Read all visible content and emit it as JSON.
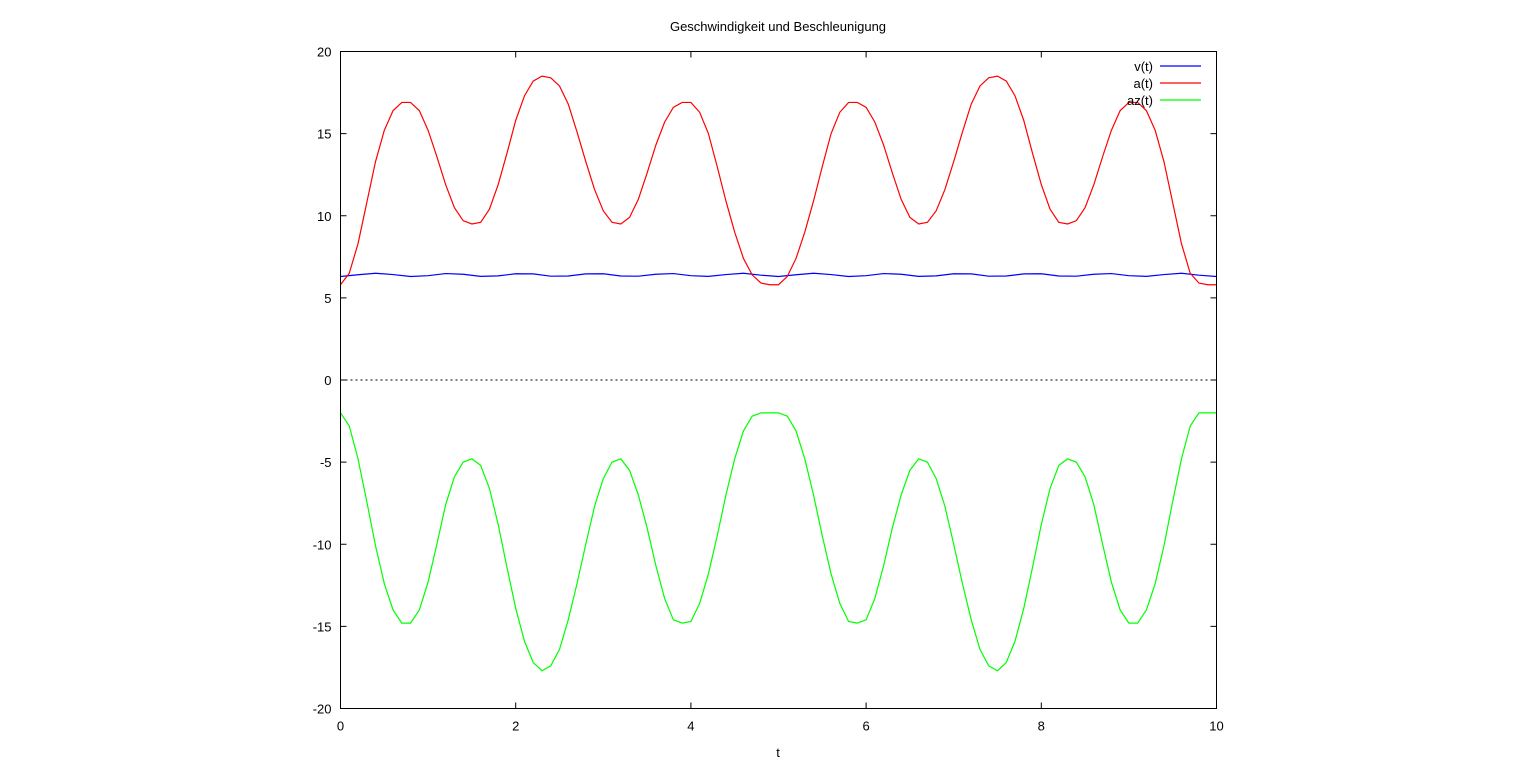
{
  "chart_data": {
    "type": "line",
    "title": "Geschwindigkeit und Beschleunigung",
    "xlabel": "t",
    "ylabel": "",
    "xlim": [
      0,
      10
    ],
    "ylim": [
      -20,
      20
    ],
    "x_ticks": [
      "0",
      "2",
      "4",
      "6",
      "8",
      "10"
    ],
    "y_ticks": [
      "-20",
      "-15",
      "-10",
      "-5",
      "0",
      "5",
      "10",
      "15",
      "20"
    ],
    "zero_line": true,
    "grid": false,
    "legend_position": "top-right",
    "series": [
      {
        "name": "v(t)",
        "color": "#0000ff",
        "x": [
          0.0,
          0.2,
          0.4,
          0.6,
          0.8,
          1.0,
          1.2,
          1.4,
          1.6,
          1.8,
          2.0,
          2.2,
          2.4,
          2.6,
          2.8,
          3.0,
          3.2,
          3.4,
          3.6,
          3.8,
          4.0,
          4.2,
          4.4,
          4.6,
          4.8,
          5.0,
          5.2,
          5.4,
          5.6,
          5.8,
          6.0,
          6.2,
          6.4,
          6.6,
          6.8,
          7.0,
          7.2,
          7.4,
          7.6,
          7.8,
          8.0,
          8.2,
          8.4,
          8.6,
          8.8,
          9.0,
          9.2,
          9.4,
          9.6,
          9.8,
          10.0
        ],
        "y": [
          6.3,
          6.41,
          6.5,
          6.42,
          6.3,
          6.35,
          6.48,
          6.44,
          6.31,
          6.34,
          6.47,
          6.46,
          6.32,
          6.33,
          6.46,
          6.47,
          6.33,
          6.32,
          6.44,
          6.48,
          6.35,
          6.31,
          6.42,
          6.5,
          6.38,
          6.3,
          6.41,
          6.5,
          6.42,
          6.3,
          6.35,
          6.48,
          6.44,
          6.31,
          6.34,
          6.47,
          6.46,
          6.32,
          6.33,
          6.46,
          6.47,
          6.33,
          6.32,
          6.44,
          6.48,
          6.35,
          6.31,
          6.42,
          6.5,
          6.38,
          6.3
        ]
      },
      {
        "name": "a(t)",
        "color": "#ff0000",
        "x": [
          0.0,
          0.1,
          0.2,
          0.3,
          0.4,
          0.5,
          0.6,
          0.7,
          0.8,
          0.9,
          1.0,
          1.1,
          1.2,
          1.3,
          1.4,
          1.5,
          1.6,
          1.7,
          1.8,
          1.9,
          2.0,
          2.1,
          2.2,
          2.3,
          2.4,
          2.5,
          2.6,
          2.7,
          2.8,
          2.9,
          3.0,
          3.1,
          3.2,
          3.3,
          3.4,
          3.5,
          3.6,
          3.7,
          3.8,
          3.9,
          4.0,
          4.1,
          4.2,
          4.3,
          4.4,
          4.5,
          4.6,
          4.7,
          4.8,
          4.9,
          5.0,
          5.1,
          5.2,
          5.3,
          5.4,
          5.5,
          5.6,
          5.7,
          5.8,
          5.9,
          6.0,
          6.1,
          6.2,
          6.3,
          6.4,
          6.5,
          6.6,
          6.7,
          6.8,
          6.9,
          7.0,
          7.1,
          7.2,
          7.3,
          7.4,
          7.5,
          7.6,
          7.7,
          7.8,
          7.9,
          8.0,
          8.1,
          8.2,
          8.3,
          8.4,
          8.5,
          8.6,
          8.7,
          8.8,
          8.9,
          9.0,
          9.1,
          9.2,
          9.3,
          9.4,
          9.5,
          9.6,
          9.7,
          9.8,
          9.9,
          10.0
        ],
        "y": [
          5.8,
          6.5,
          8.3,
          10.8,
          13.3,
          15.2,
          16.4,
          16.9,
          16.9,
          16.4,
          15.2,
          13.6,
          11.9,
          10.5,
          9.7,
          9.5,
          9.6,
          10.4,
          11.9,
          13.8,
          15.8,
          17.3,
          18.2,
          18.5,
          18.4,
          17.9,
          16.8,
          15.1,
          13.3,
          11.6,
          10.3,
          9.6,
          9.5,
          9.9,
          11.0,
          12.6,
          14.3,
          15.7,
          16.6,
          16.9,
          16.9,
          16.3,
          15.0,
          13.0,
          10.9,
          9.0,
          7.4,
          6.4,
          5.9,
          5.8,
          5.8,
          6.3,
          7.4,
          9.0,
          10.9,
          13.0,
          15.0,
          16.3,
          16.9,
          16.9,
          16.6,
          15.7,
          14.3,
          12.6,
          11.0,
          9.9,
          9.5,
          9.6,
          10.3,
          11.6,
          13.3,
          15.1,
          16.8,
          17.9,
          18.4,
          18.5,
          18.2,
          17.3,
          15.8,
          13.8,
          11.9,
          10.4,
          9.6,
          9.5,
          9.7,
          10.5,
          11.9,
          13.6,
          15.2,
          16.4,
          16.9,
          16.9,
          16.4,
          15.2,
          13.3,
          10.8,
          8.3,
          6.5,
          5.9,
          5.8,
          5.8
        ]
      },
      {
        "name": "az(t)",
        "color": "#00ff00",
        "x": [
          0.0,
          0.1,
          0.2,
          0.3,
          0.4,
          0.5,
          0.6,
          0.7,
          0.8,
          0.9,
          1.0,
          1.1,
          1.2,
          1.3,
          1.4,
          1.5,
          1.6,
          1.7,
          1.8,
          1.9,
          2.0,
          2.1,
          2.2,
          2.3,
          2.4,
          2.5,
          2.6,
          2.7,
          2.8,
          2.9,
          3.0,
          3.1,
          3.2,
          3.3,
          3.4,
          3.5,
          3.6,
          3.7,
          3.8,
          3.9,
          4.0,
          4.1,
          4.2,
          4.3,
          4.4,
          4.5,
          4.6,
          4.7,
          4.8,
          4.9,
          5.0,
          5.1,
          5.2,
          5.3,
          5.4,
          5.5,
          5.6,
          5.7,
          5.8,
          5.9,
          6.0,
          6.1,
          6.2,
          6.3,
          6.4,
          6.5,
          6.6,
          6.7,
          6.8,
          6.9,
          7.0,
          7.1,
          7.2,
          7.3,
          7.4,
          7.5,
          7.6,
          7.7,
          7.8,
          7.9,
          8.0,
          8.1,
          8.2,
          8.3,
          8.4,
          8.5,
          8.6,
          8.7,
          8.8,
          8.9,
          9.0,
          9.1,
          9.2,
          9.3,
          9.4,
          9.5,
          9.6,
          9.7,
          9.8,
          9.9,
          10.0
        ],
        "y": [
          -2.0,
          -2.8,
          -4.8,
          -7.4,
          -10.1,
          -12.4,
          -14.0,
          -14.8,
          -14.8,
          -14.0,
          -12.3,
          -10.0,
          -7.6,
          -5.9,
          -5.0,
          -4.8,
          -5.2,
          -6.6,
          -8.8,
          -11.4,
          -13.9,
          -15.9,
          -17.2,
          -17.7,
          -17.4,
          -16.4,
          -14.6,
          -12.4,
          -10.0,
          -7.7,
          -6.0,
          -5.0,
          -4.8,
          -5.5,
          -7.0,
          -9.0,
          -11.3,
          -13.3,
          -14.6,
          -14.8,
          -14.7,
          -13.6,
          -11.8,
          -9.5,
          -7.0,
          -4.8,
          -3.1,
          -2.2,
          -2.0,
          -2.0,
          -2.0,
          -2.2,
          -3.1,
          -4.8,
          -7.0,
          -9.5,
          -11.8,
          -13.6,
          -14.7,
          -14.8,
          -14.6,
          -13.3,
          -11.3,
          -9.0,
          -7.0,
          -5.5,
          -4.8,
          -5.0,
          -6.0,
          -7.7,
          -10.0,
          -12.4,
          -14.6,
          -16.4,
          -17.4,
          -17.7,
          -17.2,
          -15.9,
          -13.9,
          -11.4,
          -8.8,
          -6.6,
          -5.2,
          -4.8,
          -5.0,
          -5.9,
          -7.6,
          -10.0,
          -12.3,
          -14.0,
          -14.8,
          -14.8,
          -14.0,
          -12.4,
          -10.1,
          -7.4,
          -4.8,
          -2.8,
          -2.0,
          -2.0,
          -2.0
        ]
      }
    ]
  }
}
